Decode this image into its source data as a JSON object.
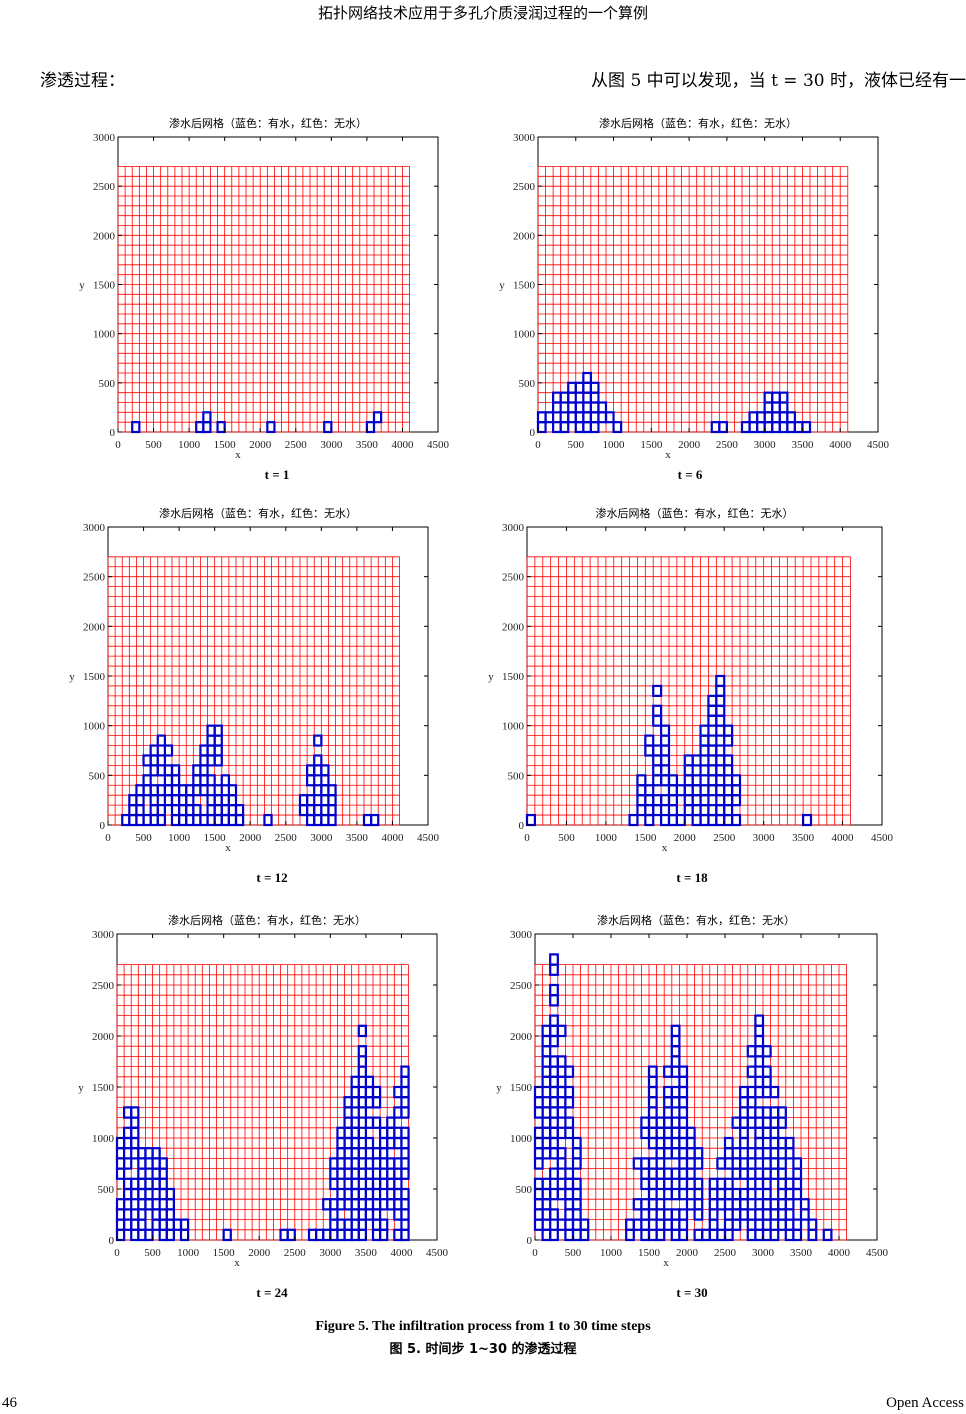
{
  "header": {
    "running_title": "拓扑网络技术应用于多孔介质浸润过程的一个算例"
  },
  "body_text": {
    "left": "渗透过程：",
    "right": "从图 5 中可以发现，当 t = 30 时，液体已经有一"
  },
  "panels": [
    {
      "title": "渗水后网格（蓝色：有水，红色：无水）",
      "label": "t = 1",
      "xlabel": "x",
      "ylabel": "y"
    },
    {
      "title": "渗水后网格（蓝色：有水，红色：无水）",
      "label": "t = 6",
      "xlabel": "x",
      "ylabel": "y"
    },
    {
      "title": "渗水后网格（蓝色：有水，红色：无水）",
      "label": "t = 12",
      "xlabel": "x",
      "ylabel": "y"
    },
    {
      "title": "渗水后网格（蓝色：有水，红色：无水）",
      "label": "t = 18",
      "xlabel": "x",
      "ylabel": "y"
    },
    {
      "title": "渗水后网格（蓝色：有水，红色：无水）",
      "label": "t = 24",
      "xlabel": "x",
      "ylabel": "y"
    },
    {
      "title": "渗水后网格（蓝色：有水，红色：无水）",
      "label": "t = 30",
      "xlabel": "x",
      "ylabel": "y"
    }
  ],
  "chart_data": [
    {
      "type": "heatmap",
      "t": 1,
      "xlim": [
        0,
        4500
      ],
      "ylim": [
        0,
        3000
      ],
      "grid_extent": {
        "x": [
          0,
          4100
        ],
        "y": [
          0,
          2700
        ]
      },
      "x_ticks": [
        0,
        500,
        1000,
        1500,
        2000,
        2500,
        3000,
        3500,
        4000,
        4500
      ],
      "y_ticks": [
        0,
        500,
        1000,
        1500,
        2000,
        2500,
        3000
      ],
      "colors": {
        "dry": "#ff0000",
        "wet": "#0000cc"
      },
      "wet_front_max_height": 100
    },
    {
      "type": "heatmap",
      "t": 6,
      "xlim": [
        0,
        4500
      ],
      "ylim": [
        0,
        3000
      ],
      "grid_extent": {
        "x": [
          0,
          4100
        ],
        "y": [
          0,
          2700
        ]
      },
      "x_ticks": [
        0,
        500,
        1000,
        1500,
        2000,
        2500,
        3000,
        3500,
        4000,
        4500
      ],
      "y_ticks": [
        0,
        500,
        1000,
        1500,
        2000,
        2500,
        3000
      ],
      "colors": {
        "dry": "#ff0000",
        "wet": "#0000cc"
      },
      "wet_front_max_height": 600
    },
    {
      "type": "heatmap",
      "t": 12,
      "xlim": [
        0,
        4500
      ],
      "ylim": [
        0,
        3000
      ],
      "grid_extent": {
        "x": [
          0,
          4100
        ],
        "y": [
          0,
          2700
        ]
      },
      "x_ticks": [
        0,
        500,
        1000,
        1500,
        2000,
        2500,
        3000,
        3500,
        4000,
        4500
      ],
      "y_ticks": [
        0,
        500,
        1000,
        1500,
        2000,
        2500,
        3000
      ],
      "colors": {
        "dry": "#ff0000",
        "wet": "#0000cc"
      },
      "wet_front_max_height": 1100
    },
    {
      "type": "heatmap",
      "t": 18,
      "xlim": [
        0,
        4500
      ],
      "ylim": [
        0,
        3000
      ],
      "grid_extent": {
        "x": [
          0,
          4100
        ],
        "y": [
          0,
          2700
        ]
      },
      "x_ticks": [
        0,
        500,
        1000,
        1500,
        2000,
        2500,
        3000,
        3500,
        4000,
        4500
      ],
      "y_ticks": [
        0,
        500,
        1000,
        1500,
        2000,
        2500,
        3000
      ],
      "colors": {
        "dry": "#ff0000",
        "wet": "#0000cc"
      },
      "wet_front_max_height": 1500
    },
    {
      "type": "heatmap",
      "t": 24,
      "xlim": [
        0,
        4500
      ],
      "ylim": [
        0,
        3000
      ],
      "grid_extent": {
        "x": [
          0,
          4100
        ],
        "y": [
          0,
          2700
        ]
      },
      "x_ticks": [
        0,
        500,
        1000,
        1500,
        2000,
        2500,
        3000,
        3500,
        4000,
        4500
      ],
      "y_ticks": [
        0,
        500,
        1000,
        1500,
        2000,
        2500,
        3000
      ],
      "colors": {
        "dry": "#ff0000",
        "wet": "#0000cc"
      },
      "wet_front_max_height": 2100
    },
    {
      "type": "heatmap",
      "t": 30,
      "xlim": [
        0,
        4500
      ],
      "ylim": [
        0,
        3000
      ],
      "grid_extent": {
        "x": [
          0,
          4100
        ],
        "y": [
          0,
          2700
        ]
      },
      "x_ticks": [
        0,
        500,
        1000,
        1500,
        2000,
        2500,
        3000,
        3500,
        4000,
        4500
      ],
      "y_ticks": [
        0,
        500,
        1000,
        1500,
        2000,
        2500,
        3000
      ],
      "colors": {
        "dry": "#ff0000",
        "wet": "#0000cc"
      },
      "wet_front_max_height": 2700
    }
  ],
  "captions": {
    "en": "Figure 5. The infiltration process from 1 to 30 time steps",
    "zh": "图 5.  时间步 1~30 的渗透过程"
  },
  "footer": {
    "page": "46",
    "access": "Open Access"
  }
}
